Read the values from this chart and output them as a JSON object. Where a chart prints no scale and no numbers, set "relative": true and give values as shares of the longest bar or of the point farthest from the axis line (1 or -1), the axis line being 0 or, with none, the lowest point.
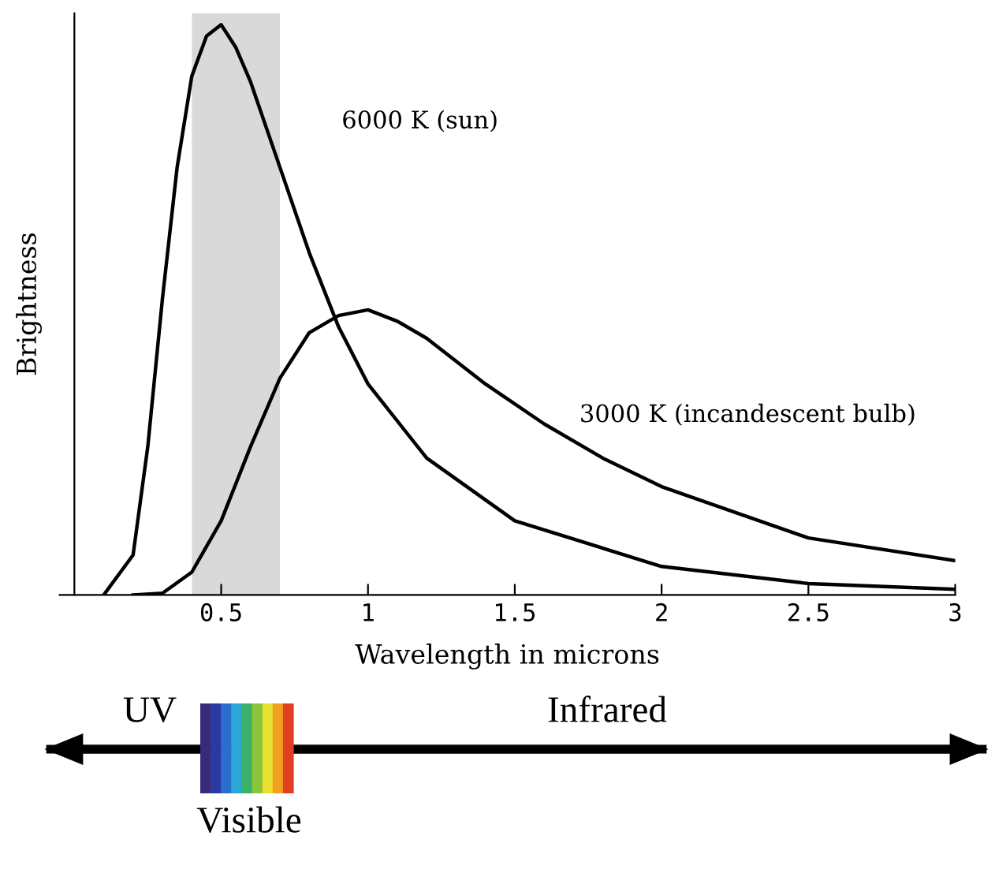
{
  "chart_data": {
    "type": "line",
    "relative": true,
    "xlabel": "Wavelength in microns",
    "ylabel": "Brightness",
    "xlim": [
      -0.05,
      3
    ],
    "xticks": [
      0.5,
      1,
      1.5,
      2,
      2.5,
      3
    ],
    "bands": [
      {
        "axis": "x",
        "from": 0.4,
        "to": 0.7,
        "color": "#d9d9d9"
      }
    ],
    "series": [
      {
        "name": "6000 K (sun)",
        "color": "#000000",
        "x": [
          0.1,
          0.2,
          0.25,
          0.3,
          0.35,
          0.4,
          0.45,
          0.5,
          0.55,
          0.6,
          0.7,
          0.8,
          0.9,
          1.0,
          1.2,
          1.5,
          2.0,
          2.5,
          3.0
        ],
        "values": [
          0,
          0.07,
          0.26,
          0.52,
          0.75,
          0.91,
          0.98,
          1.0,
          0.96,
          0.9,
          0.75,
          0.6,
          0.47,
          0.37,
          0.24,
          0.13,
          0.05,
          0.02,
          0.01
        ]
      },
      {
        "name": "3000 K (incandescent bulb)",
        "color": "#000000",
        "x": [
          0.2,
          0.3,
          0.4,
          0.5,
          0.6,
          0.7,
          0.8,
          0.9,
          1.0,
          1.1,
          1.2,
          1.4,
          1.6,
          1.8,
          2.0,
          2.5,
          3.0
        ],
        "values": [
          0,
          0.003,
          0.04,
          0.13,
          0.26,
          0.38,
          0.46,
          0.49,
          0.5,
          0.48,
          0.45,
          0.37,
          0.3,
          0.24,
          0.19,
          0.1,
          0.06
        ]
      }
    ],
    "annotations": [
      "UV",
      "Infrared",
      "Visible"
    ],
    "grid": false,
    "legend": false,
    "marker": "none",
    "line_style": "solid"
  }
}
